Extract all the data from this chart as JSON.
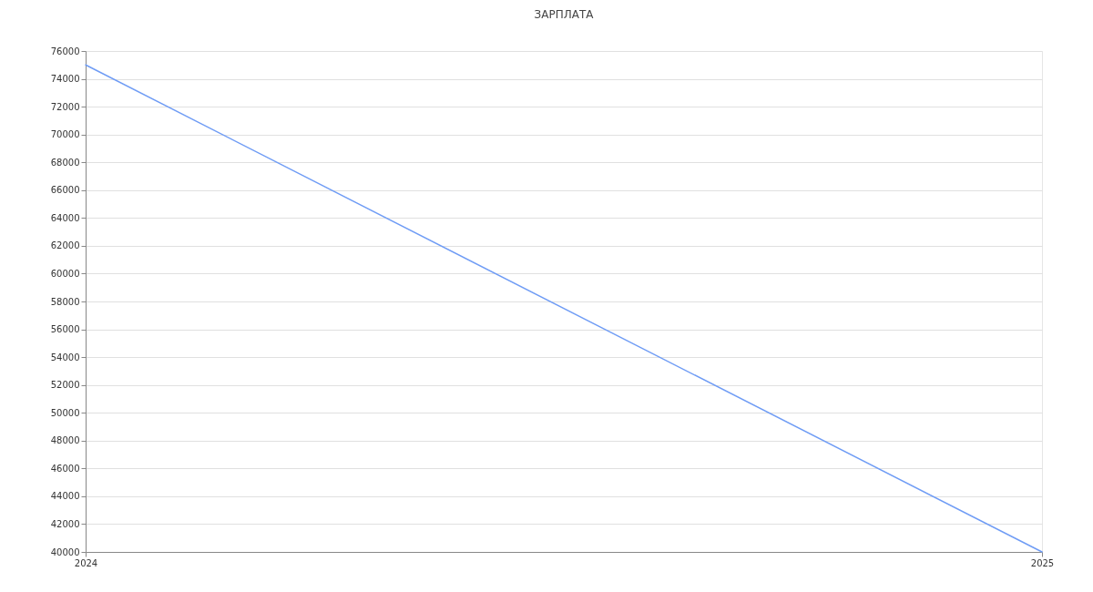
{
  "chart_data": {
    "type": "line",
    "title": "ЗАРПЛАТА",
    "x": [
      2024,
      2025
    ],
    "series": [
      {
        "color": "#6f9cf5",
        "values": [
          75000,
          40000
        ]
      }
    ],
    "xlim": [
      2024,
      2025
    ],
    "xticks": [
      2024,
      2025
    ],
    "ylim": [
      40000,
      76000
    ],
    "yticks": [
      40000,
      42000,
      44000,
      46000,
      48000,
      50000,
      52000,
      54000,
      56000,
      58000,
      60000,
      62000,
      64000,
      66000,
      68000,
      70000,
      72000,
      74000,
      76000
    ],
    "grid": "y",
    "marker": "none",
    "line_style": "solid"
  }
}
